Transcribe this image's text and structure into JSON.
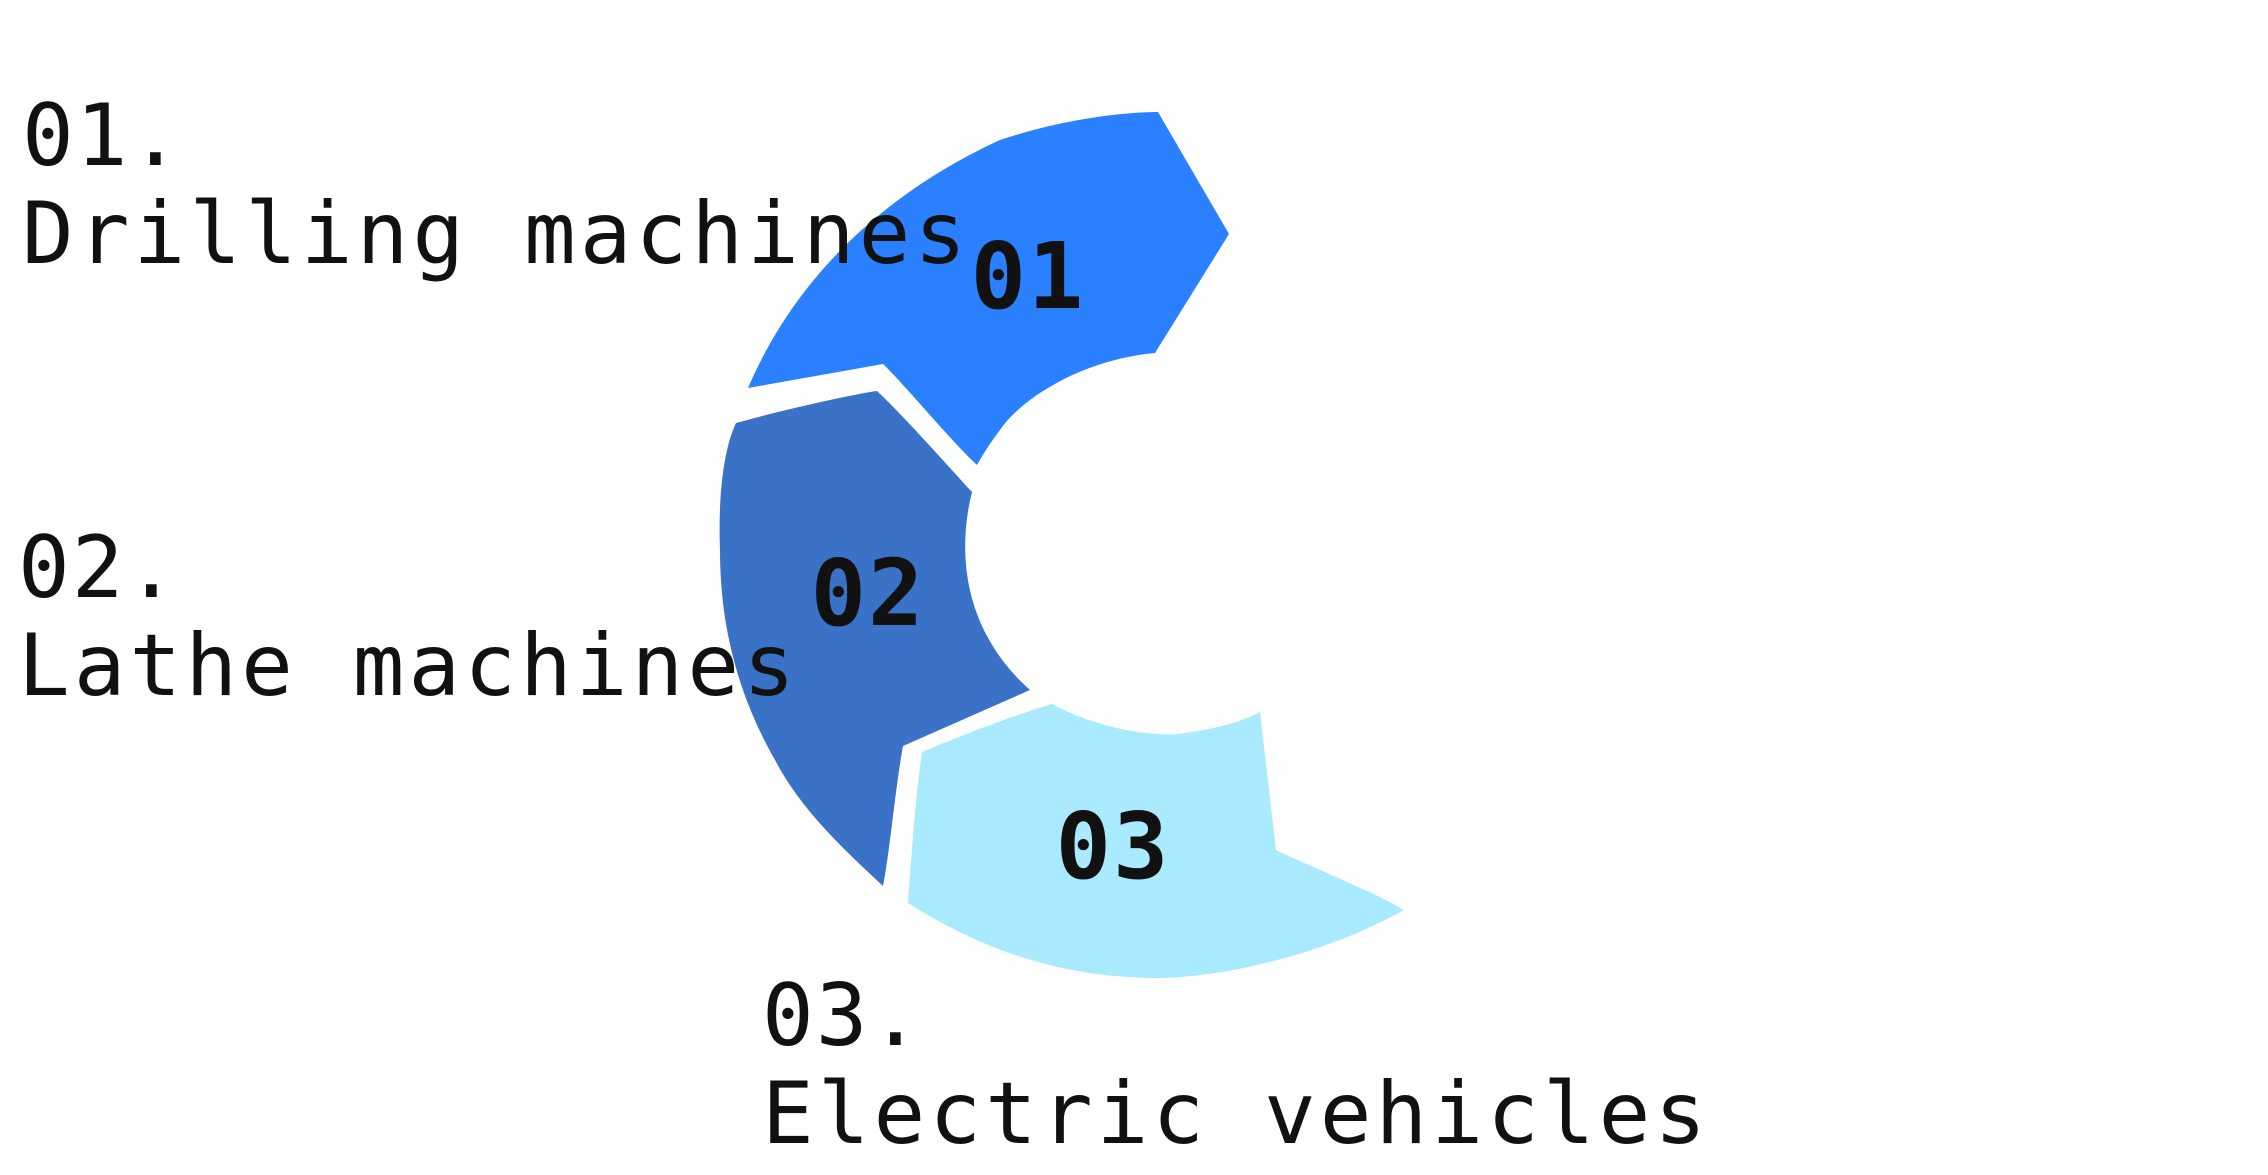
{
  "diagram": {
    "segments": [
      {
        "number": "01",
        "color": "#2b80ff"
      },
      {
        "number": "02",
        "color": "#3a72c8"
      },
      {
        "number": "03",
        "color": "#aaeaff"
      }
    ]
  },
  "labels": [
    {
      "number": "01.",
      "text": "Drilling machines"
    },
    {
      "number": "02.",
      "text": "Lathe machines"
    },
    {
      "number": "03.",
      "text": "Electric vehicles"
    }
  ]
}
